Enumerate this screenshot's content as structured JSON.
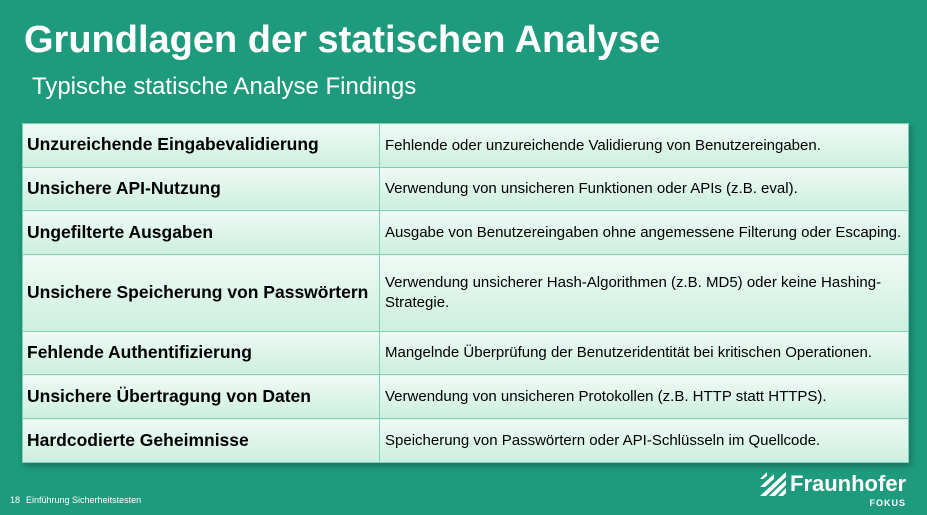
{
  "slide": {
    "title": "Grundlagen der statischen Analyse",
    "subtitle": "Typische statische Analyse Findings"
  },
  "findings": [
    {
      "name": "Unzureichende Eingabevalidierung",
      "description": "Fehlende oder unzureichende Validierung von Benutzereingaben."
    },
    {
      "name": "Unsichere API-Nutzung",
      "description": "Verwendung von unsicheren Funktionen oder APIs (z.B. eval)."
    },
    {
      "name": "Ungefilterte Ausgaben",
      "description": "Ausgabe von Benutzereingaben ohne angemessene Filterung oder Escaping."
    },
    {
      "name": "Unsichere Speicherung von Passwörtern",
      "description": "Verwendung unsicherer Hash-Algorithmen (z.B. MD5) oder keine Hashing-Strategie."
    },
    {
      "name": "Fehlende Authentifizierung",
      "description": "Mangelnde Überprüfung der Benutzeridentität bei kritischen Operationen."
    },
    {
      "name": "Unsichere Übertragung von Daten",
      "description": "Verwendung von unsicheren Protokollen (z.B. HTTP statt HTTPS)."
    },
    {
      "name": "Hardcodierte Geheimnisse",
      "description": "Speicherung von Passwörtern oder API-Schlüsseln im Quellcode."
    }
  ],
  "footer": {
    "page_number": "18",
    "text": "Einführung Sicherheitstesten"
  },
  "logo": {
    "name": "Fraunhofer",
    "unit": "FOKUS",
    "icon": "fraunhofer-logo-icon"
  },
  "colors": {
    "background": "#1e9a7c",
    "cell_top": "#effaf5",
    "cell_bottom": "#ccefdf",
    "border": "#7fd1b5",
    "text_light": "#ffffff"
  }
}
